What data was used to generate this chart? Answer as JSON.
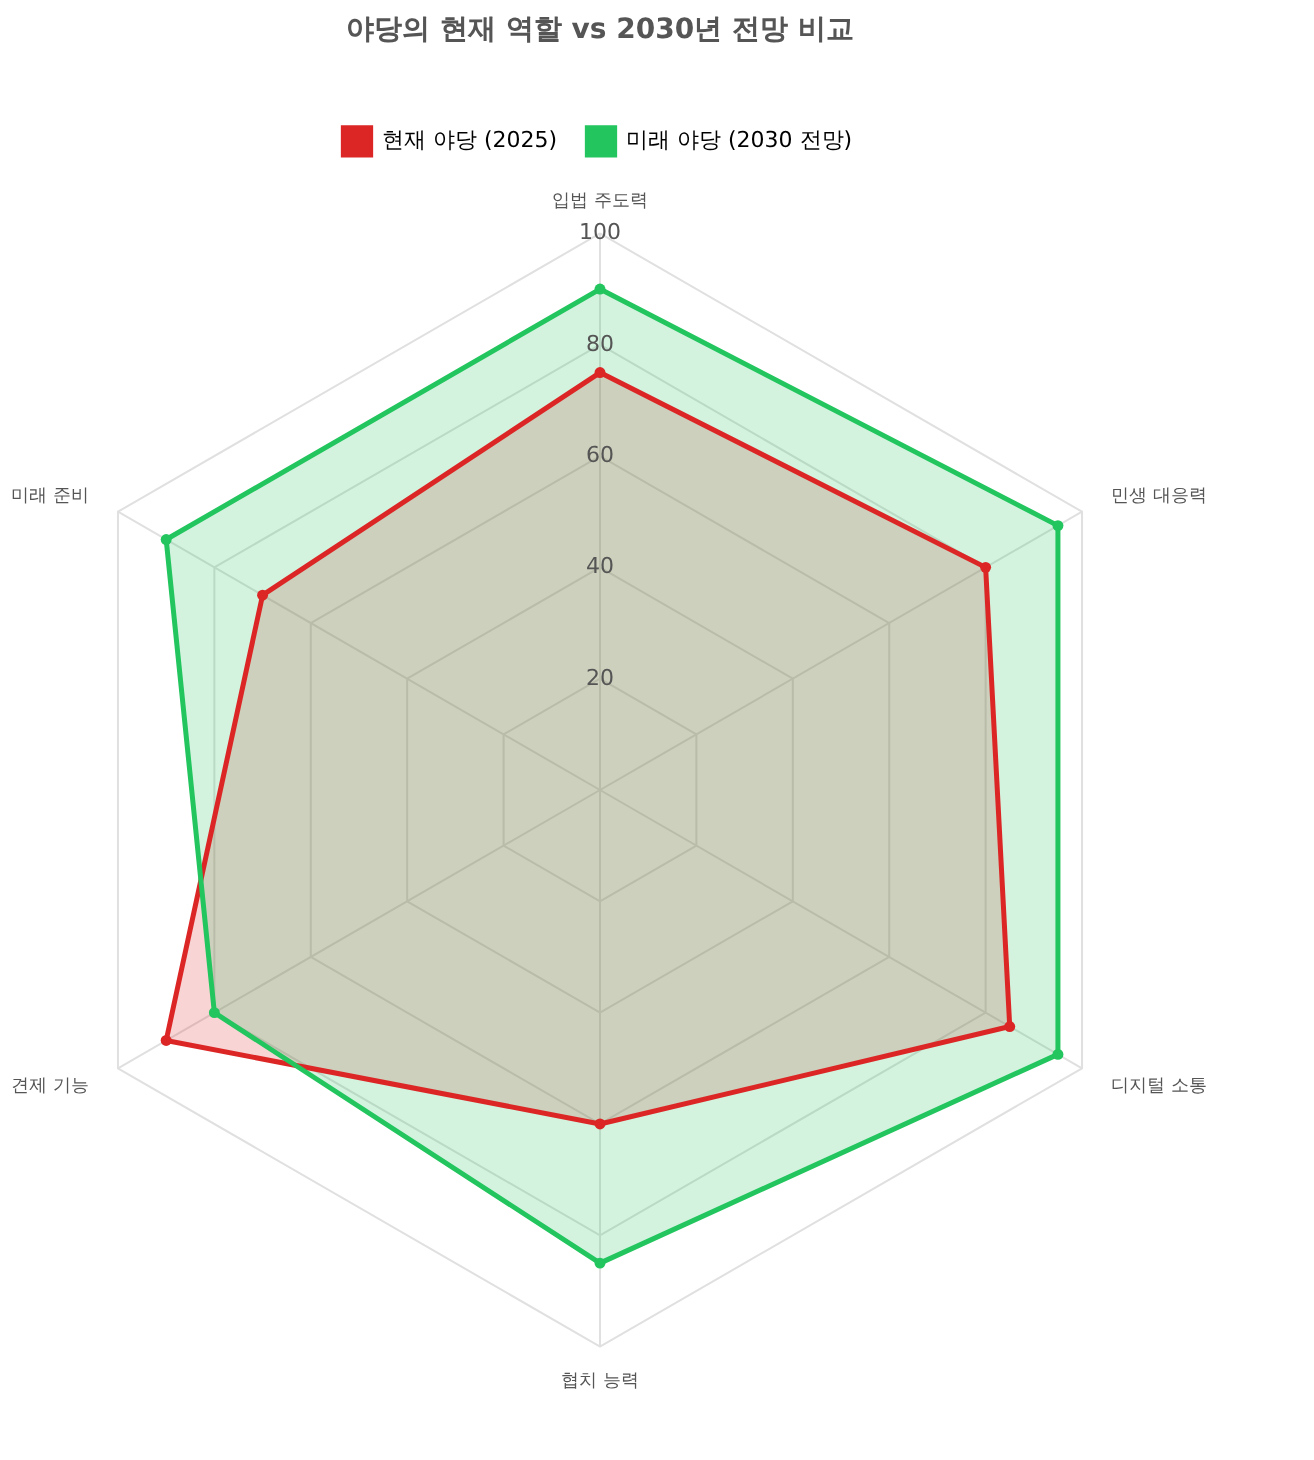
{
  "chart_data": {
    "type": "radar",
    "title": "야당의 현재 역할 vs 2030년 전망 비교",
    "categories": [
      "입법 주도력",
      "민생 대응력",
      "디지털 소통",
      "협치 능력",
      "견제 기능",
      "미래 준비"
    ],
    "series": [
      {
        "name": "현재 야당 (2025)",
        "color": "#dc2626",
        "values": [
          75,
          80,
          85,
          60,
          90,
          70
        ]
      },
      {
        "name": "미래 야당 (2030 전망)",
        "color": "#22c55e",
        "values": [
          90,
          95,
          95,
          85,
          80,
          90
        ]
      }
    ],
    "ylim": [
      0,
      100
    ],
    "yticks": [
      20,
      40,
      60,
      80,
      100
    ],
    "grid": true,
    "legend": "top",
    "marker": "circle"
  }
}
